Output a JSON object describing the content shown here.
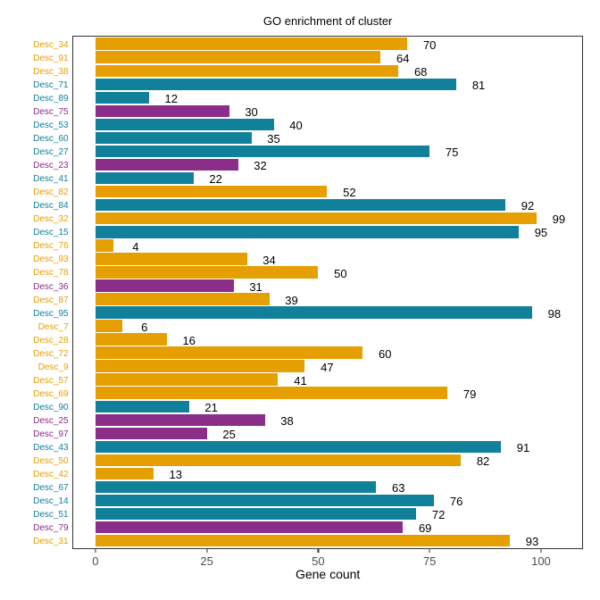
{
  "chart_data": {
    "type": "bar",
    "orientation": "horizontal",
    "title": "GO enrichment of cluster",
    "xlabel": "Gene count",
    "ylabel": "",
    "xlim": [
      -5.05,
      109.35
    ],
    "x_ticks": [
      0,
      25,
      50,
      75,
      100
    ],
    "grid": false,
    "legend": "none",
    "value_label_offset_units": 5,
    "palette": {
      "orange": "#E69F00",
      "teal": "#11809B",
      "purple": "#8A2E8A"
    },
    "categories": [
      "Desc_34",
      "Desc_91",
      "Desc_38",
      "Desc_71",
      "Desc_89",
      "Desc_75",
      "Desc_53",
      "Desc_60",
      "Desc_27",
      "Desc_23",
      "Desc_41",
      "Desc_82",
      "Desc_84",
      "Desc_32",
      "Desc_15",
      "Desc_76",
      "Desc_93",
      "Desc_78",
      "Desc_36",
      "Desc_87",
      "Desc_95",
      "Desc_7",
      "Desc_28",
      "Desc_72",
      "Desc_9",
      "Desc_57",
      "Desc_69",
      "Desc_90",
      "Desc_25",
      "Desc_97",
      "Desc_43",
      "Desc_50",
      "Desc_42",
      "Desc_67",
      "Desc_14",
      "Desc_51",
      "Desc_79",
      "Desc_31"
    ],
    "values": [
      70,
      64,
      68,
      81,
      12,
      30,
      40,
      35,
      75,
      32,
      22,
      52,
      92,
      99,
      95,
      4,
      34,
      50,
      31,
      39,
      98,
      6,
      16,
      60,
      47,
      41,
      79,
      21,
      38,
      25,
      91,
      82,
      13,
      63,
      76,
      72,
      69,
      93
    ],
    "groups": [
      "orange",
      "orange",
      "orange",
      "teal",
      "teal",
      "purple",
      "teal",
      "teal",
      "teal",
      "purple",
      "teal",
      "orange",
      "teal",
      "orange",
      "teal",
      "orange",
      "orange",
      "orange",
      "purple",
      "orange",
      "teal",
      "orange",
      "orange",
      "orange",
      "orange",
      "orange",
      "orange",
      "teal",
      "purple",
      "purple",
      "teal",
      "orange",
      "orange",
      "teal",
      "teal",
      "teal",
      "purple",
      "orange"
    ]
  },
  "style": {
    "axis_text_color": "#4d4d4d",
    "panel_border_color": "#333333",
    "background_color": "#ffffff"
  }
}
